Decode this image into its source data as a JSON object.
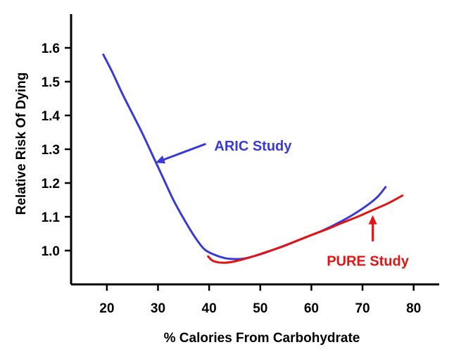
{
  "chart_data": {
    "type": "line",
    "title": "",
    "xlabel": "% Calories From Carbohydrate",
    "ylabel": "Relative Risk Of Dying",
    "xlim": [
      13,
      85
    ],
    "ylim": [
      0.9,
      1.7
    ],
    "xticks": [
      20,
      30,
      40,
      50,
      60,
      70,
      80
    ],
    "xtick_labels": [
      "20",
      "30",
      "40",
      "50",
      "60",
      "70",
      "80"
    ],
    "yticks": [
      1.0,
      1.1,
      1.2,
      1.3,
      1.4,
      1.5,
      1.6
    ],
    "ytick_labels": [
      "1.0",
      "1.1",
      "1.2",
      "1.3",
      "1.4",
      "1.5",
      "1.6"
    ],
    "grid": false,
    "series": [
      {
        "name": "ARIC Study",
        "color": "#3a3ad6",
        "points": [
          [
            19.3,
            1.58
          ],
          [
            21,
            1.53
          ],
          [
            23,
            1.465
          ],
          [
            25,
            1.405
          ],
          [
            27,
            1.345
          ],
          [
            29,
            1.28
          ],
          [
            31,
            1.215
          ],
          [
            33,
            1.15
          ],
          [
            35,
            1.095
          ],
          [
            37,
            1.045
          ],
          [
            39,
            1.005
          ],
          [
            41,
            0.988
          ],
          [
            43,
            0.978
          ],
          [
            45,
            0.975
          ],
          [
            47,
            0.977
          ],
          [
            50,
            0.989
          ],
          [
            53,
            1.005
          ],
          [
            56,
            1.022
          ],
          [
            59,
            1.04
          ],
          [
            62,
            1.058
          ],
          [
            65,
            1.08
          ],
          [
            68,
            1.105
          ],
          [
            71,
            1.135
          ],
          [
            73,
            1.16
          ],
          [
            74.5,
            1.188
          ]
        ]
      },
      {
        "name": "PURE Study",
        "color": "#e01515",
        "points": [
          [
            39.8,
            0.983
          ],
          [
            40.5,
            0.972
          ],
          [
            41.5,
            0.966
          ],
          [
            43,
            0.964
          ],
          [
            45,
            0.968
          ],
          [
            48,
            0.98
          ],
          [
            51,
            0.995
          ],
          [
            54,
            1.01
          ],
          [
            57,
            1.028
          ],
          [
            60,
            1.046
          ],
          [
            63,
            1.063
          ],
          [
            66,
            1.082
          ],
          [
            69,
            1.1
          ],
          [
            72,
            1.12
          ],
          [
            75,
            1.14
          ],
          [
            77.8,
            1.163
          ]
        ]
      }
    ],
    "annotations": [
      {
        "text": "ARIC Study",
        "series": "ARIC Study",
        "arrow_to": [
          29.5,
          1.26
        ],
        "arrow_from": [
          39.2,
          1.315
        ],
        "label_at": [
          41,
          1.31
        ]
      },
      {
        "text": "PURE Study",
        "series": "PURE Study",
        "arrow_to": [
          72,
          1.105
        ],
        "arrow_from": [
          72,
          1.03
        ],
        "label_at": [
          63,
          0.97
        ]
      }
    ]
  }
}
